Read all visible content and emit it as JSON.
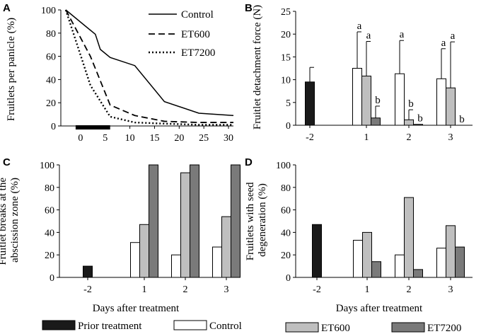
{
  "colors": {
    "prior": "#1a1a1a",
    "control": "#ffffff",
    "et600": "#bfbfbf",
    "et7200": "#7a7a7a",
    "axis": "#000000"
  },
  "legend_bottom": {
    "prior": "Prior treatment",
    "control": "Control",
    "et600": "ET600",
    "et7200": "ET7200"
  },
  "chart_data": [
    {
      "panel": "A",
      "type": "line",
      "ylabel": "Fruitlets per panicle (%)",
      "xlabel": "",
      "xlim": [
        -4,
        31
      ],
      "ylim": [
        0,
        100
      ],
      "xticks": [
        0,
        5,
        10,
        15,
        20,
        25,
        30
      ],
      "yticks": [
        0,
        20,
        40,
        60,
        80,
        100
      ],
      "treatment_bar": [
        -1,
        6
      ],
      "legend_position": "top-right",
      "series": [
        {
          "name": "Control",
          "style": "solid",
          "x": [
            -3,
            3,
            4,
            6,
            11,
            17,
            24,
            31
          ],
          "y": [
            100,
            79,
            66,
            59,
            52,
            21,
            11,
            9
          ]
        },
        {
          "name": "ET600",
          "style": "dashed",
          "x": [
            -3,
            2,
            6,
            11,
            17,
            24,
            31
          ],
          "y": [
            100,
            60,
            18,
            9,
            4,
            3,
            3
          ]
        },
        {
          "name": "ET7200",
          "style": "dotted",
          "x": [
            -3,
            2,
            6,
            11,
            17,
            24,
            31
          ],
          "y": [
            100,
            35,
            8,
            3,
            2,
            1,
            1
          ]
        }
      ]
    },
    {
      "panel": "B",
      "type": "bar",
      "ylabel": "Fruitlet detachment force (N)",
      "xlabel": "",
      "ylim": [
        0,
        25
      ],
      "yticks": [
        0,
        5,
        10,
        15,
        20,
        25
      ],
      "categories": [
        "-2",
        "1",
        "2",
        "3"
      ],
      "series": [
        {
          "name": "Prior treatment",
          "values": [
            9.5,
            null,
            null,
            null
          ],
          "errors": [
            3.2,
            null,
            null,
            null
          ]
        },
        {
          "name": "Control",
          "values": [
            null,
            12.5,
            11.3,
            10.2
          ],
          "errors": [
            null,
            8.0,
            7.3,
            6.6
          ]
        },
        {
          "name": "ET600",
          "values": [
            null,
            10.8,
            1.2,
            8.2
          ],
          "errors": [
            null,
            7.6,
            2.2,
            10.1
          ]
        },
        {
          "name": "ET7200",
          "values": [
            null,
            1.6,
            0.2,
            0.0
          ],
          "errors": [
            null,
            2.6,
            0.0,
            0.0
          ]
        }
      ],
      "annotations": [
        {
          "category": "1",
          "series": "Control",
          "text": "a"
        },
        {
          "category": "1",
          "series": "ET600",
          "text": "a"
        },
        {
          "category": "1",
          "series": "ET7200",
          "text": "b"
        },
        {
          "category": "2",
          "series": "Control",
          "text": "a"
        },
        {
          "category": "2",
          "series": "ET600",
          "text": "b"
        },
        {
          "category": "2",
          "series": "ET7200",
          "text": "b"
        },
        {
          "category": "3",
          "series": "Control",
          "text": "a"
        },
        {
          "category": "3",
          "series": "ET600",
          "text": "a"
        },
        {
          "category": "3",
          "series": "ET7200",
          "text": "b"
        }
      ]
    },
    {
      "panel": "C",
      "type": "bar",
      "ylabel": "Fruitlet breaks at the abscission zone (%)",
      "xlabel": "Days after treatment",
      "ylim": [
        0,
        100
      ],
      "yticks": [
        0,
        20,
        40,
        60,
        80,
        100
      ],
      "categories": [
        "-2",
        "1",
        "2",
        "3"
      ],
      "series": [
        {
          "name": "Prior treatment",
          "values": [
            10,
            null,
            null,
            null
          ]
        },
        {
          "name": "Control",
          "values": [
            null,
            31,
            20,
            27
          ]
        },
        {
          "name": "ET600",
          "values": [
            null,
            47,
            93,
            54
          ]
        },
        {
          "name": "ET7200",
          "values": [
            null,
            100,
            100,
            100
          ]
        }
      ]
    },
    {
      "panel": "D",
      "type": "bar",
      "ylabel": "Fruitlets with seed degeneration (%)",
      "xlabel": "Days after treatment",
      "ylim": [
        0,
        100
      ],
      "yticks": [
        0,
        20,
        40,
        60,
        80,
        100
      ],
      "categories": [
        "-2",
        "1",
        "2",
        "3"
      ],
      "series": [
        {
          "name": "Prior treatment",
          "values": [
            47,
            null,
            null,
            null
          ]
        },
        {
          "name": "Control",
          "values": [
            null,
            33,
            20,
            26
          ]
        },
        {
          "name": "ET600",
          "values": [
            null,
            40,
            71,
            46
          ]
        },
        {
          "name": "ET7200",
          "values": [
            null,
            14,
            7,
            27
          ]
        }
      ]
    }
  ]
}
